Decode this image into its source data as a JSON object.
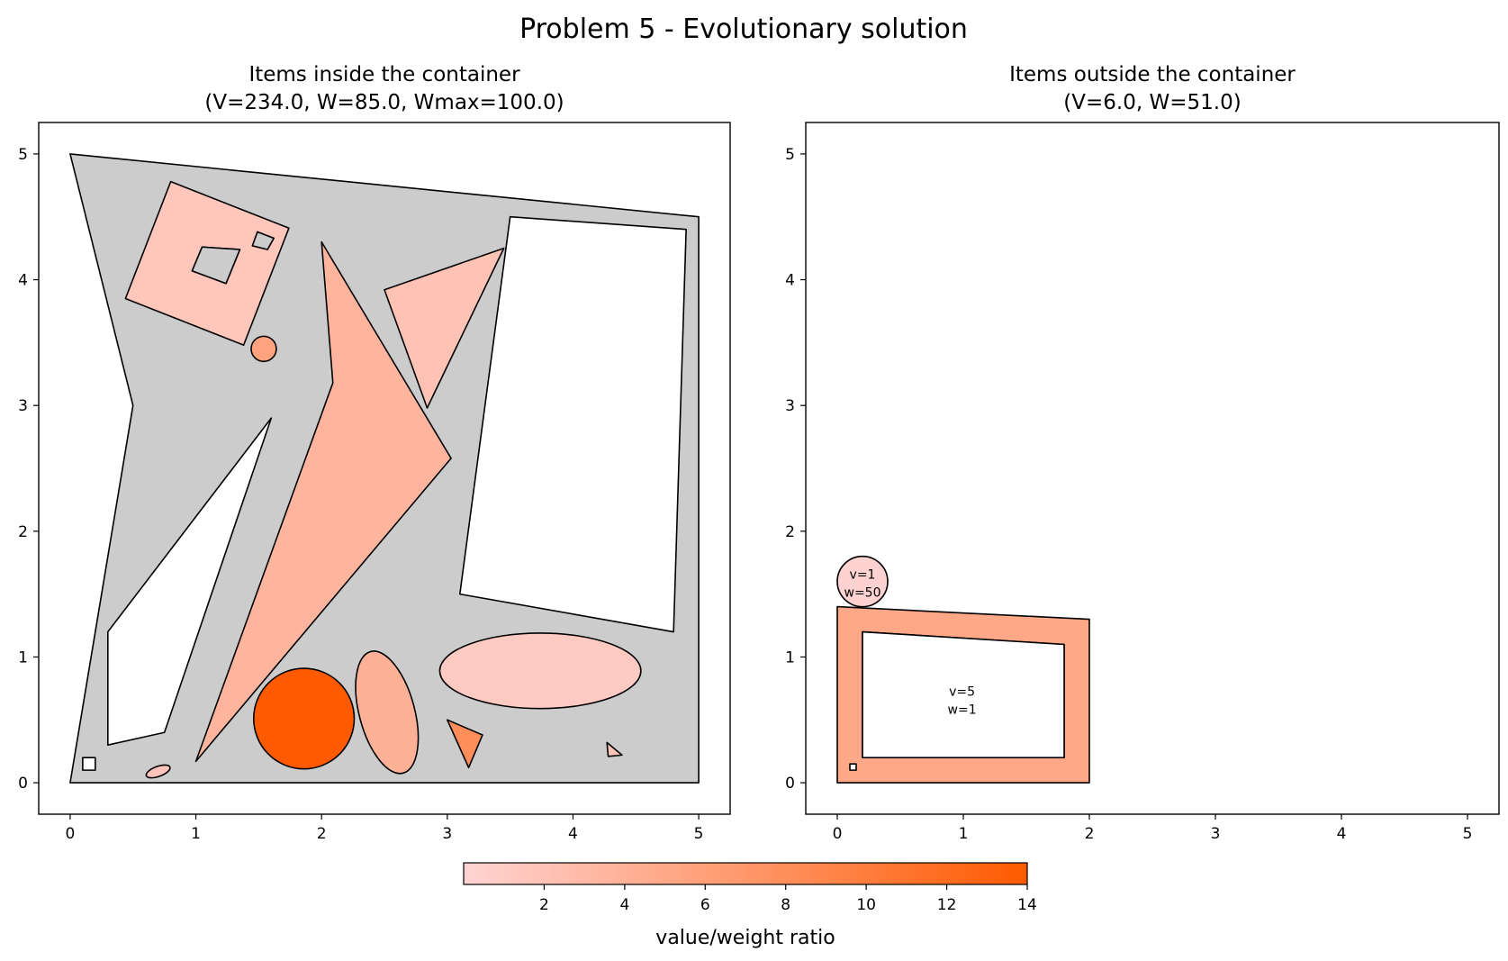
{
  "figure": {
    "title": "Problem 5 - Evolutionary solution"
  },
  "colors": {
    "container_fill": "#cccccc",
    "hole_fill": "#ffffff",
    "edge": "#000000",
    "cmap_low": "#ffd4d4",
    "cmap_high": "#ff5a00"
  },
  "chart_data": [
    {
      "type": "polygon-packing",
      "title_line1": "Items inside the container",
      "title_line2": "(V=234.0, W=85.0, Wmax=100.0)",
      "xlim": [
        -0.25,
        5.25
      ],
      "ylim": [
        -0.25,
        5.25
      ],
      "xticks": [
        "0",
        "1",
        "2",
        "3",
        "4",
        "5"
      ],
      "yticks": [
        "0",
        "1",
        "2",
        "3",
        "4",
        "5"
      ],
      "container": {
        "outer": [
          [
            0,
            0
          ],
          [
            5,
            0
          ],
          [
            5,
            4.5
          ],
          [
            0,
            5
          ],
          [
            0.5,
            3
          ]
        ],
        "holes": [
          [
            [
              0.3,
              0.3
            ],
            [
              0.75,
              0.4
            ],
            [
              1.6,
              2.9
            ],
            [
              0.3,
              1.2
            ]
          ],
          [
            [
              3.1,
              1.5
            ],
            [
              3.5,
              4.5
            ],
            [
              4.9,
              4.4
            ],
            [
              4.8,
              1.2
            ]
          ]
        ]
      },
      "items": [
        {
          "shape": "polygon",
          "ratio": 1.6,
          "points": [
            [
              0.8,
              4.78
            ],
            [
              1.74,
              4.41
            ],
            [
              1.38,
              3.48
            ],
            [
              0.44,
              3.85
            ]
          ],
          "holes": [
            [
              [
                1.05,
                4.26
              ],
              [
                1.35,
                4.24
              ],
              [
                1.24,
                3.97
              ],
              [
                0.97,
                4.07
              ]
            ],
            [
              [
                1.49,
                4.38
              ],
              [
                1.62,
                4.33
              ],
              [
                1.57,
                4.24
              ],
              [
                1.45,
                4.27
              ]
            ]
          ]
        },
        {
          "shape": "circle",
          "ratio": 5.6,
          "cx": 1.54,
          "cy": 3.45,
          "r": 0.1
        },
        {
          "shape": "polygon",
          "ratio": 3.6,
          "points": [
            [
              2.0,
              4.3
            ],
            [
              2.09,
              3.18
            ],
            [
              1.0,
              0.17
            ],
            [
              3.03,
              2.58
            ]
          ]
        },
        {
          "shape": "polygon",
          "ratio": 2.0,
          "points": [
            [
              2.5,
              3.92
            ],
            [
              3.45,
              4.25
            ],
            [
              2.84,
              2.98
            ]
          ]
        },
        {
          "shape": "circle",
          "ratio": 14.0,
          "cx": 1.86,
          "cy": 0.51,
          "r": 0.4
        },
        {
          "shape": "ellipse",
          "ratio": 4.0,
          "cx": 2.52,
          "cy": 0.56,
          "rx": 0.22,
          "ry": 0.5,
          "angle": -15
        },
        {
          "shape": "ellipse",
          "ratio": 1.2,
          "cx": 3.74,
          "cy": 0.89,
          "rx": 0.8,
          "ry": 0.3,
          "angle": 0
        },
        {
          "shape": "polygon",
          "ratio": 8.0,
          "points": [
            [
              3.0,
              0.5
            ],
            [
              3.28,
              0.38
            ],
            [
              3.17,
              0.12
            ]
          ]
        },
        {
          "shape": "polygon",
          "ratio": 1.8,
          "points": [
            [
              4.27,
              0.32
            ],
            [
              4.39,
              0.22
            ],
            [
              4.28,
              0.21
            ]
          ]
        },
        {
          "shape": "ellipse",
          "ratio": 1.8,
          "cx": 0.7,
          "cy": 0.09,
          "rx": 0.1,
          "ry": 0.04,
          "angle": -20
        },
        {
          "shape": "polygon",
          "ratio": 0.0,
          "points": [
            [
              0.1,
              0.1
            ],
            [
              0.2,
              0.1
            ],
            [
              0.2,
              0.2
            ],
            [
              0.1,
              0.2
            ]
          ],
          "fill": "#ffffff"
        }
      ]
    },
    {
      "type": "polygon-packing",
      "title_line1": "Items outside the container",
      "title_line2": "(V=6.0, W=51.0)",
      "xlim": [
        -0.25,
        5.25
      ],
      "ylim": [
        -0.25,
        5.25
      ],
      "xticks": [
        "0",
        "1",
        "2",
        "3",
        "4",
        "5"
      ],
      "yticks": [
        "0",
        "1",
        "2",
        "3",
        "4",
        "5"
      ],
      "items": [
        {
          "shape": "polygon",
          "ratio": 5.0,
          "points": [
            [
              0,
              0
            ],
            [
              2,
              0
            ],
            [
              2,
              1.3
            ],
            [
              0,
              1.4
            ]
          ],
          "holes": [
            [
              [
                0.2,
                0.2
              ],
              [
                1.8,
                0.2
              ],
              [
                1.8,
                1.1
              ],
              [
                0.2,
                1.2
              ]
            ]
          ],
          "label": [
            "v=5",
            "w=1"
          ],
          "lx": 0.99,
          "ly": 0.67
        },
        {
          "shape": "circle",
          "ratio": 0.02,
          "cx": 0.2,
          "cy": 1.6,
          "r": 0.2,
          "fill": "#ffd2d2",
          "label": [
            "v=1",
            "w=50"
          ],
          "lx": 0.2,
          "ly": 1.6
        },
        {
          "shape": "polygon",
          "ratio": 0.0,
          "points": [
            [
              0.1,
              0.1
            ],
            [
              0.15,
              0.1
            ],
            [
              0.15,
              0.15
            ],
            [
              0.1,
              0.15
            ]
          ],
          "fill": "#ffffff"
        }
      ]
    }
  ],
  "colorbar": {
    "label": "value/weight ratio",
    "min": 0,
    "max": 14,
    "ticks": [
      "2",
      "4",
      "6",
      "8",
      "10",
      "12",
      "14"
    ]
  }
}
